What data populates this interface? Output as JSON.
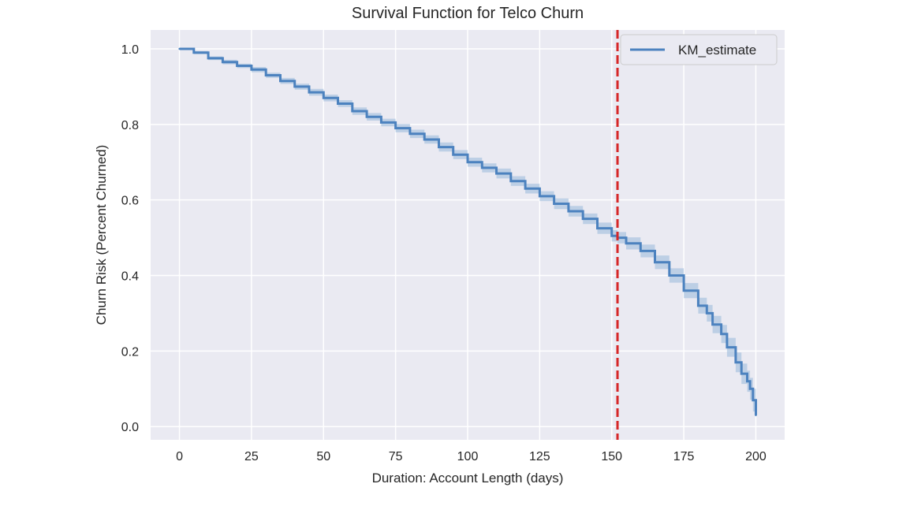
{
  "chart_data": {
    "type": "line",
    "title": "Survival Function for Telco Churn",
    "xlabel": "Duration: Account Length (days)",
    "ylabel": "Churn Risk (Percent Churned)",
    "xlim": [
      -10,
      210
    ],
    "ylim": [
      -0.035,
      1.05
    ],
    "xticks": [
      0,
      25,
      50,
      75,
      100,
      125,
      150,
      175,
      200
    ],
    "xtick_labels": [
      "0",
      "25",
      "50",
      "75",
      "100",
      "125",
      "150",
      "175",
      "200"
    ],
    "yticks": [
      0.0,
      0.2,
      0.4,
      0.6,
      0.8,
      1.0
    ],
    "ytick_labels": [
      "0.0",
      "0.2",
      "0.4",
      "0.6",
      "0.8",
      "1.0"
    ],
    "grid": true,
    "legend_position": "top-right",
    "series": [
      {
        "name": "KM_estimate",
        "color": "#4c82bf",
        "ci_color": "#a9c3e0",
        "step": true,
        "x": [
          0,
          5,
          10,
          15,
          20,
          25,
          30,
          35,
          40,
          45,
          50,
          55,
          60,
          65,
          70,
          75,
          80,
          85,
          90,
          95,
          100,
          105,
          110,
          115,
          120,
          125,
          130,
          135,
          140,
          145,
          150,
          152,
          155,
          160,
          165,
          170,
          175,
          180,
          183,
          185,
          188,
          190,
          193,
          195,
          197,
          198,
          199,
          200
        ],
        "y": [
          1.0,
          0.99,
          0.975,
          0.965,
          0.955,
          0.945,
          0.93,
          0.915,
          0.9,
          0.885,
          0.87,
          0.855,
          0.835,
          0.82,
          0.805,
          0.79,
          0.775,
          0.76,
          0.74,
          0.72,
          0.7,
          0.685,
          0.67,
          0.65,
          0.63,
          0.61,
          0.59,
          0.57,
          0.55,
          0.525,
          0.505,
          0.5,
          0.485,
          0.465,
          0.435,
          0.4,
          0.36,
          0.32,
          0.3,
          0.27,
          0.245,
          0.21,
          0.17,
          0.14,
          0.12,
          0.1,
          0.07,
          0.03
        ],
        "ci_halfwidth": [
          0.0,
          0.004,
          0.005,
          0.006,
          0.006,
          0.007,
          0.007,
          0.008,
          0.008,
          0.009,
          0.009,
          0.009,
          0.01,
          0.01,
          0.01,
          0.011,
          0.011,
          0.011,
          0.012,
          0.012,
          0.012,
          0.012,
          0.013,
          0.013,
          0.013,
          0.013,
          0.014,
          0.014,
          0.014,
          0.015,
          0.015,
          0.015,
          0.016,
          0.017,
          0.018,
          0.019,
          0.02,
          0.021,
          0.022,
          0.023,
          0.024,
          0.025,
          0.026,
          0.027,
          0.028,
          0.029,
          0.03,
          0.031
        ]
      }
    ],
    "annotations": [
      {
        "type": "vline",
        "x": 152,
        "color": "#d62728",
        "style": "dashed"
      }
    ]
  }
}
